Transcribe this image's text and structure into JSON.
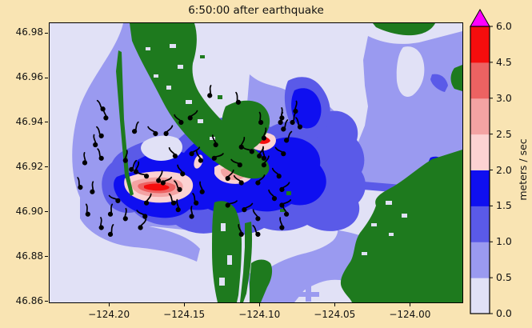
{
  "figure": {
    "title": "6:50:00 after earthquake",
    "background_color": "#F9E4B3"
  },
  "chart_data": {
    "type": "heatmap",
    "title": "6:50:00 after earthquake",
    "xlabel": "",
    "ylabel": "",
    "grid": false,
    "x_axis": {
      "range": [
        -124.2394,
        -123.9651
      ],
      "ticks": [
        -124.2,
        -124.15,
        -124.1,
        -124.05,
        -124.0
      ],
      "tick_labels": [
        "−124.20",
        "−124.15",
        "−124.10",
        "−124.05",
        "−124.00"
      ]
    },
    "y_axis": {
      "range": [
        46.8596,
        46.9843
      ],
      "ticks": [
        46.98,
        46.96,
        46.94,
        46.92,
        46.9,
        46.88,
        46.86
      ],
      "tick_labels": [
        "46.98",
        "46.96",
        "46.94",
        "46.92",
        "46.90",
        "46.88",
        "46.86"
      ]
    },
    "colorbar": {
      "label": "meters / sec",
      "units": "meters / sec",
      "extend": "max",
      "boundaries": [
        0.0,
        0.5,
        1.0,
        1.5,
        2.0,
        2.5,
        3.0,
        4.5,
        6.0
      ],
      "tick_labels": [
        "0.0",
        "0.5",
        "1.0",
        "1.5",
        "2.0",
        "2.5",
        "3.0",
        "4.5",
        "6.0"
      ],
      "band_colors": [
        "#E1E1F6",
        "#9A9AF0",
        "#5A5AE8",
        "#0F0FF0",
        "#FCD2D2",
        "#F3A3A3",
        "#EC6262",
        "#F50D0D"
      ],
      "over_color": "#FF00FF"
    },
    "map_colors": {
      "land_green": "#1E7A1E",
      "ocean_base": "#E1E1F6",
      "drifter_black": "#000000",
      "figure_background": "#F9E4B3"
    },
    "drifters": [
      [
        -124.204,
        46.946
      ],
      [
        -124.202,
        46.942
      ],
      [
        -124.205,
        46.934
      ],
      [
        -124.209,
        46.93
      ],
      [
        -124.205,
        46.924
      ],
      [
        -124.216,
        46.922
      ],
      [
        -124.219,
        46.911
      ],
      [
        -124.211,
        46.909
      ],
      [
        -124.214,
        46.899
      ],
      [
        -124.199,
        46.899
      ],
      [
        -124.205,
        46.893
      ],
      [
        -124.199,
        46.89
      ],
      [
        -124.189,
        46.897
      ],
      [
        -124.183,
        46.936
      ],
      [
        -124.189,
        46.923
      ],
      [
        -124.185,
        46.919
      ],
      [
        -124.182,
        46.918
      ],
      [
        -124.175,
        46.916
      ],
      [
        -124.167,
        46.914
      ],
      [
        -124.194,
        46.905
      ],
      [
        -124.175,
        46.904
      ],
      [
        -124.176,
        46.898
      ],
      [
        -124.179,
        46.893
      ],
      [
        -124.169,
        46.935
      ],
      [
        -124.162,
        46.935
      ],
      [
        -124.152,
        46.94
      ],
      [
        -124.146,
        46.942
      ],
      [
        -124.156,
        46.925
      ],
      [
        -124.145,
        46.926
      ],
      [
        -124.151,
        46.917
      ],
      [
        -124.164,
        46.913
      ],
      [
        -124.139,
        46.923
      ],
      [
        -124.13,
        46.924
      ],
      [
        -124.129,
        46.93
      ],
      [
        -124.153,
        46.91
      ],
      [
        -124.138,
        46.909
      ],
      [
        -124.157,
        46.904
      ],
      [
        -124.154,
        46.901
      ],
      [
        -124.142,
        46.904
      ],
      [
        -124.145,
        46.898
      ],
      [
        -124.114,
        46.949
      ],
      [
        -124.133,
        46.952
      ],
      [
        -124.099,
        46.94
      ],
      [
        -124.086,
        46.94
      ],
      [
        -124.085,
        46.942
      ],
      [
        -124.078,
        46.94
      ],
      [
        -124.076,
        46.945
      ],
      [
        -124.084,
        46.937
      ],
      [
        -124.097,
        46.933
      ],
      [
        -124.082,
        46.932
      ],
      [
        -124.112,
        46.929
      ],
      [
        -124.105,
        46.927
      ],
      [
        -124.1,
        46.925
      ],
      [
        -124.113,
        46.921
      ],
      [
        -124.097,
        46.921
      ],
      [
        -124.084,
        46.926
      ],
      [
        -124.121,
        46.915
      ],
      [
        -124.112,
        46.913
      ],
      [
        -124.101,
        46.913
      ],
      [
        -124.087,
        46.916
      ],
      [
        -124.085,
        46.91
      ],
      [
        -124.09,
        46.906
      ],
      [
        -124.11,
        46.901
      ],
      [
        -124.101,
        46.897
      ],
      [
        -124.085,
        46.903
      ],
      [
        -124.082,
        46.899
      ],
      [
        -124.121,
        46.903
      ],
      [
        -124.112,
        46.89
      ],
      [
        -124.101,
        46.89
      ],
      [
        -124.085,
        46.893
      ],
      [
        -124.073,
        46.938
      ],
      [
        -124.097,
        46.924
      ]
    ]
  }
}
